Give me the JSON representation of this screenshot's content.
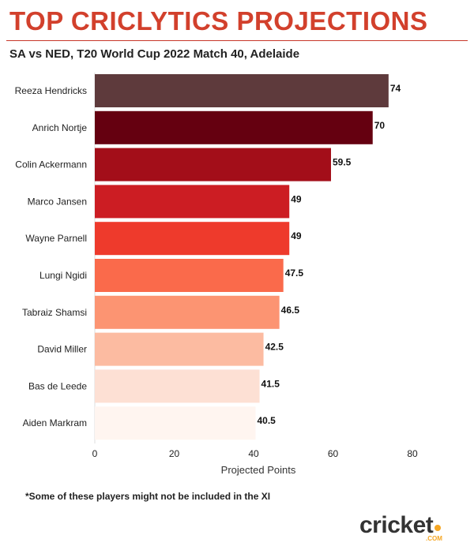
{
  "header": {
    "title": "TOP CRICLYTICS PROJECTIONS",
    "subtitle": "SA vs NED, T20 World Cup 2022 Match 40, Adelaide"
  },
  "footnote": "*Some of these players might not be included in the XI",
  "logo": {
    "text": "cricket",
    "sub": ".COM",
    "accent_color": "#f5a623"
  },
  "chart_data": {
    "type": "bar",
    "orientation": "horizontal",
    "categories": [
      "Reeza Hendricks",
      "Anrich Nortje",
      "Colin Ackermann",
      "Marco Jansen",
      "Wayne Parnell",
      "Lungi Ngidi",
      "Tabraiz Shamsi",
      "David Miller",
      "Bas de Leede",
      "Aiden Markram"
    ],
    "values": [
      74,
      70,
      59.5,
      49,
      49,
      47.5,
      46.5,
      42.5,
      41.5,
      40.5
    ],
    "value_labels": [
      "74",
      "70",
      "59.5",
      "49",
      "49",
      "47.5",
      "46.5",
      "42.5",
      "41.5",
      "40.5"
    ],
    "colors": [
      "#5e3a3c",
      "#650010",
      "#a30e19",
      "#cc1d23",
      "#ee3a2c",
      "#fa6a4b",
      "#fc9472",
      "#fcbba1",
      "#fde0d4",
      "#fff5f0"
    ],
    "xlabel": "Projected Points",
    "ylabel": "",
    "xlim": [
      0,
      80
    ],
    "xticks": [
      0,
      20,
      40,
      60,
      80
    ],
    "grid": false
  }
}
